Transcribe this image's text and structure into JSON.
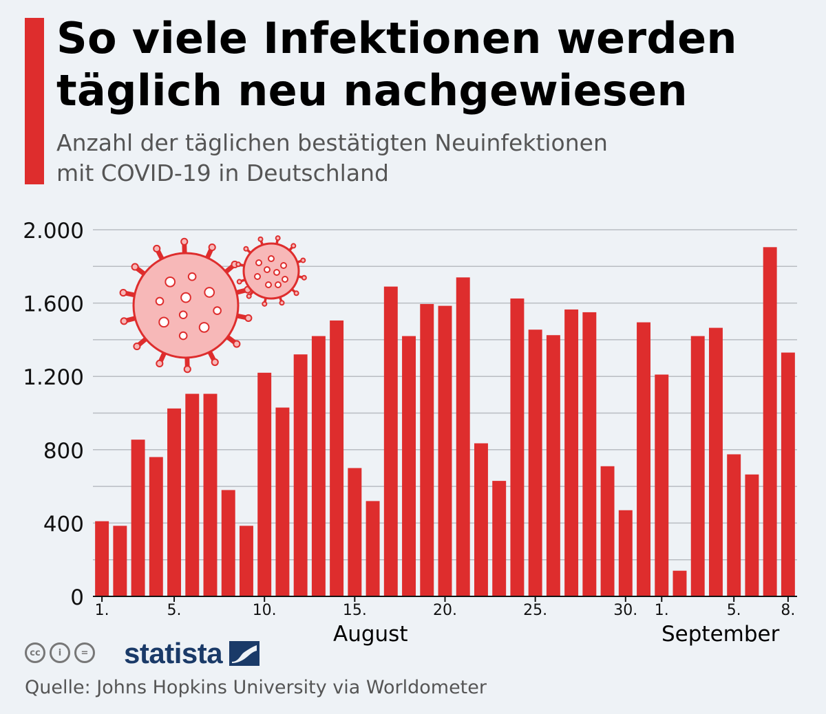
{
  "header": {
    "title_line1": "So viele Infektionen werden",
    "title_line2": "täglich neu nachgewiesen",
    "subtitle_line1": "Anzahl der täglichen bestätigten Neuinfektionen",
    "subtitle_line2": "mit COVID-19 in Deutschland"
  },
  "colors": {
    "accent": "#de2d2d",
    "bar": "#de2d2d",
    "grid": "#b8bcc2",
    "virus_fill": "#f7b8b8",
    "virus_stroke": "#de2d2d",
    "brand": "#1a3a68"
  },
  "chart_data": {
    "type": "bar",
    "title": "So viele Infektionen werden täglich neu nachgewiesen",
    "subtitle": "Anzahl der täglichen bestätigten Neuinfektionen mit COVID-19 in Deutschland",
    "xlabel": "",
    "ylabel": "",
    "ylim": [
      0,
      2000
    ],
    "yticks": [
      0,
      400,
      800,
      1200,
      1600,
      2000
    ],
    "ytick_labels": [
      "0",
      "400",
      "800",
      "1.200",
      "1.600",
      "2.000"
    ],
    "grid": true,
    "categories": [
      "1. Aug",
      "2. Aug",
      "3. Aug",
      "4. Aug",
      "5. Aug",
      "6. Aug",
      "7. Aug",
      "8. Aug",
      "9. Aug",
      "10. Aug",
      "11. Aug",
      "12. Aug",
      "13. Aug",
      "14. Aug",
      "15. Aug",
      "16. Aug",
      "17. Aug",
      "18. Aug",
      "19. Aug",
      "20. Aug",
      "21. Aug",
      "22. Aug",
      "23. Aug",
      "24. Aug",
      "25. Aug",
      "26. Aug",
      "27. Aug",
      "28. Aug",
      "29. Aug",
      "30. Aug",
      "31. Aug",
      "1. Sep",
      "2. Sep",
      "3. Sep",
      "4. Sep",
      "5. Sep",
      "6. Sep",
      "7. Sep",
      "8. Sep"
    ],
    "values": [
      410,
      385,
      855,
      760,
      1025,
      1105,
      1105,
      580,
      385,
      1220,
      1030,
      1320,
      1420,
      1505,
      700,
      520,
      1690,
      1420,
      1595,
      1585,
      1740,
      835,
      630,
      1625,
      1455,
      1425,
      1565,
      1550,
      710,
      470,
      1495,
      1210,
      140,
      1420,
      1465,
      775,
      665,
      1905,
      1330
    ],
    "xtick_indices": [
      0,
      4,
      9,
      14,
      19,
      24,
      29,
      31,
      35,
      38
    ],
    "xtick_labels": [
      "1.",
      "5.",
      "10.",
      "15.",
      "20.",
      "25.",
      "30.",
      "1.",
      "5.",
      "8."
    ],
    "month_labels": [
      "August",
      "September"
    ]
  },
  "footer": {
    "license_icons": [
      "cc",
      "i",
      "="
    ],
    "brand": "statista",
    "source": "Quelle: Johns Hopkins University via Worldometer"
  }
}
